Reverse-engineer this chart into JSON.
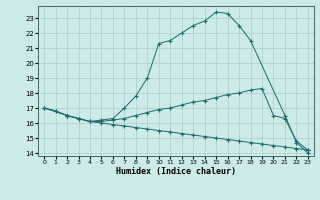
{
  "xlabel": "Humidex (Indice chaleur)",
  "xlim": [
    -0.5,
    23.5
  ],
  "ylim": [
    13.8,
    23.8
  ],
  "xticks": [
    0,
    1,
    2,
    3,
    4,
    5,
    6,
    7,
    8,
    9,
    10,
    11,
    12,
    13,
    14,
    15,
    16,
    17,
    18,
    19,
    20,
    21,
    22,
    23
  ],
  "yticks": [
    14,
    15,
    16,
    17,
    18,
    19,
    20,
    21,
    22,
    23
  ],
  "bg_color": "#cceae8",
  "line_color": "#1a6b6b",
  "grid_color": "#aaccca",
  "line_bottom": {
    "x": [
      0,
      1,
      2,
      3,
      4,
      5,
      6,
      7,
      8,
      9,
      10,
      11,
      12,
      13,
      14,
      15,
      16,
      17,
      18,
      19,
      20,
      21,
      22,
      23
    ],
    "y": [
      17.0,
      16.8,
      16.5,
      16.3,
      16.1,
      16.0,
      15.9,
      15.8,
      15.7,
      15.6,
      15.5,
      15.4,
      15.3,
      15.2,
      15.1,
      15.0,
      14.9,
      14.8,
      14.7,
      14.6,
      14.5,
      14.4,
      14.3,
      14.2
    ]
  },
  "line_mid": {
    "x": [
      0,
      1,
      2,
      3,
      4,
      5,
      6,
      7,
      8,
      9,
      10,
      11,
      12,
      13,
      14,
      15,
      16,
      17,
      18,
      19,
      20,
      21,
      22,
      23
    ],
    "y": [
      17.0,
      16.8,
      16.5,
      16.3,
      16.1,
      16.1,
      16.2,
      16.3,
      16.5,
      16.7,
      16.9,
      17.0,
      17.2,
      17.4,
      17.5,
      17.7,
      17.9,
      18.0,
      18.2,
      18.3,
      16.5,
      16.3,
      14.8,
      14.2
    ]
  },
  "line_top": {
    "x": [
      0,
      2,
      3,
      4,
      5,
      6,
      7,
      8,
      9,
      10,
      11,
      12,
      13,
      14,
      15,
      16,
      17,
      18,
      21,
      22,
      23
    ],
    "y": [
      17.0,
      16.5,
      16.3,
      16.1,
      16.2,
      16.3,
      17.0,
      17.8,
      19.0,
      21.3,
      21.5,
      22.0,
      22.5,
      22.8,
      23.4,
      23.3,
      22.5,
      21.5,
      16.5,
      14.7,
      14.0
    ]
  }
}
